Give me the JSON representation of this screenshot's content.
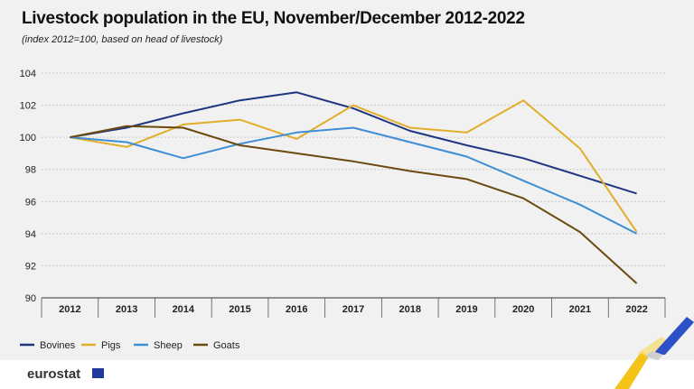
{
  "header": {
    "title": "Livestock population in the EU, November/December 2012-2022",
    "subtitle": "(index 2012=100, based on head of livestock)"
  },
  "footer": {
    "logo_text": "eurostat"
  },
  "colors": {
    "Bovines": "#1f3580",
    "Pigs": "#e2ae2a",
    "Sheep": "#3d8ed6",
    "Goats": "#6b4a0e",
    "grid": "#c9c9c9",
    "background": "#f1f1f1"
  },
  "chart_data": {
    "type": "line",
    "title": "Livestock population in the EU, November/December 2012-2022",
    "subtitle": "(index 2012=100, based on head of livestock)",
    "x": [
      "2012",
      "2013",
      "2014",
      "2015",
      "2016",
      "2017",
      "2018",
      "2019",
      "2020",
      "2021",
      "2022"
    ],
    "ylim": [
      90,
      104
    ],
    "yticks": [
      90,
      92,
      94,
      96,
      98,
      100,
      102,
      104
    ],
    "grid": "horizontal",
    "legend": "bottom-left",
    "series": [
      {
        "name": "Bovines",
        "values": [
          100,
          100.6,
          101.5,
          102.3,
          102.8,
          101.8,
          100.4,
          99.5,
          98.7,
          97.6,
          96.5
        ]
      },
      {
        "name": "Pigs",
        "values": [
          100,
          99.4,
          100.8,
          101.1,
          99.9,
          102.0,
          100.6,
          100.3,
          102.3,
          99.3,
          94.1
        ]
      },
      {
        "name": "Sheep",
        "values": [
          100,
          99.7,
          98.7,
          99.6,
          100.3,
          100.6,
          99.7,
          98.8,
          97.3,
          95.8,
          94.0
        ]
      },
      {
        "name": "Goats",
        "values": [
          100,
          100.7,
          100.6,
          99.5,
          99.0,
          98.5,
          97.9,
          97.4,
          96.2,
          94.1,
          90.9
        ]
      }
    ]
  }
}
